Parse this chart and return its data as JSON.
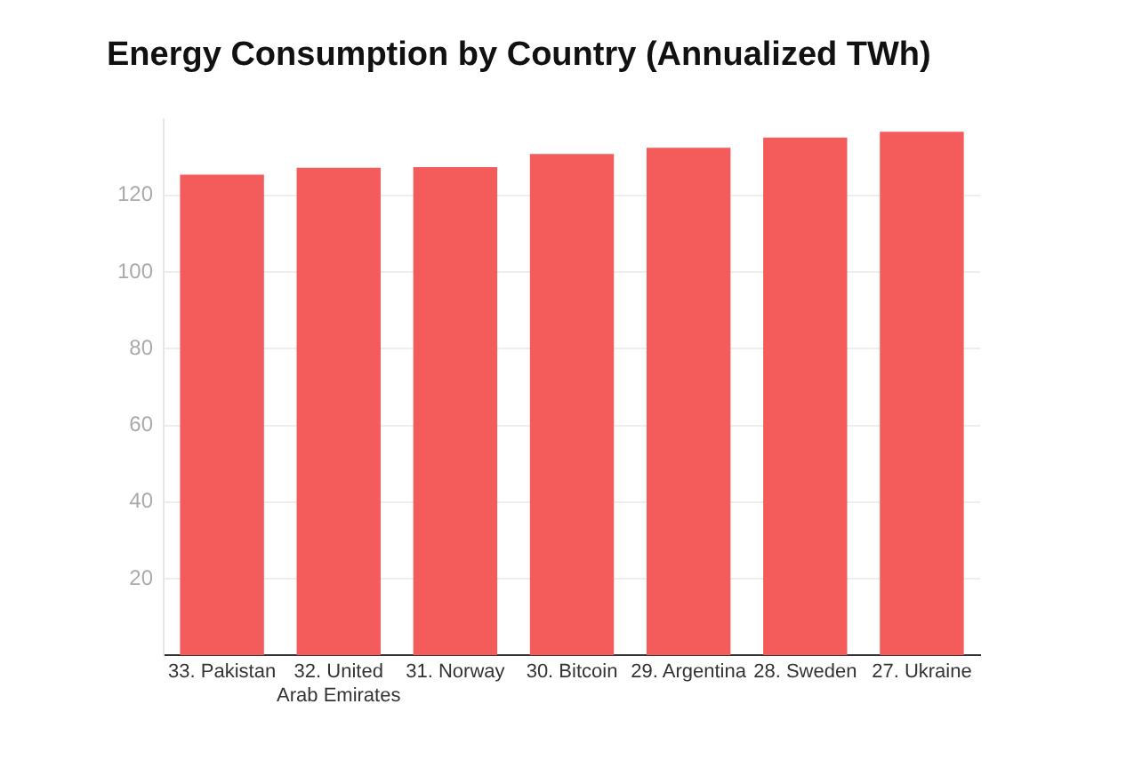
{
  "chart_data": {
    "type": "bar",
    "title": "Energy Consumption by Country (Annualized TWh)",
    "categories": [
      "33. Pakistan",
      "32. United Arab Emirates",
      "31. Norway",
      "30. Bitcoin",
      "29. Argentina",
      "28. Sweden",
      "27. Ukraine"
    ],
    "values": [
      125.4,
      127.2,
      127.4,
      130.8,
      132.4,
      135.1,
      136.6
    ],
    "color": "#f45b5b",
    "ylim": [
      0,
      140
    ],
    "yticks": [
      20,
      40,
      60,
      80,
      100,
      120
    ],
    "grid": "y"
  }
}
